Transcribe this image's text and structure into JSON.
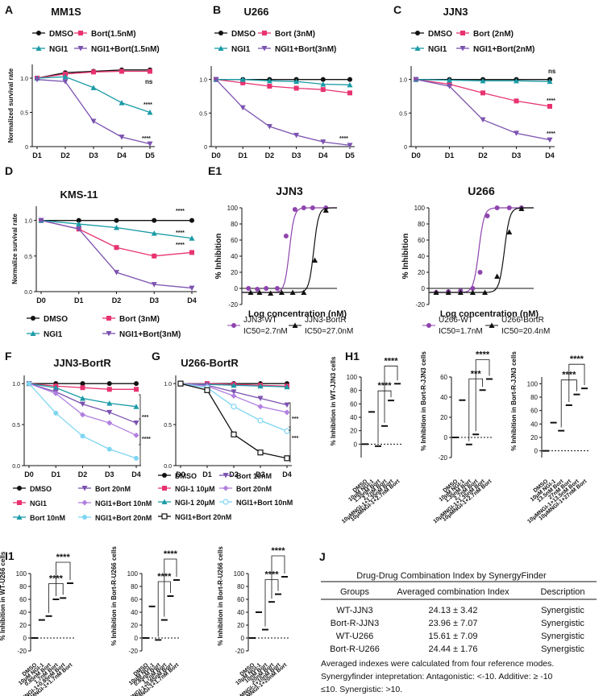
{
  "colors": {
    "dmso": "#111111",
    "ngi1": "#1a9ba6",
    "bort": "#e8336f",
    "combo": "#7b52b0",
    "bort10": "#7a9cc9",
    "ngi1b10": "#b07fe0",
    "ngi1b20": "#7fd6f2",
    "wt": "#8e44ad"
  },
  "chart_data": [
    {
      "panel": "A",
      "type": "line",
      "title": "MM1S",
      "ylabel": "Normalized survival rate",
      "x": [
        "D1",
        "D2",
        "D3",
        "D4",
        "D5"
      ],
      "ylim": [
        0,
        1.2
      ],
      "yticks": [
        "0",
        "0.5",
        "1.0"
      ],
      "legend": [
        "DMSO",
        "Bort(1.5nM)",
        "NGI1",
        "NGI1+Bort(1.5nM)"
      ],
      "series": [
        {
          "name": "DMSO",
          "values": [
            1.0,
            1.08,
            1.1,
            1.12,
            1.12
          ]
        },
        {
          "name": "Bort(1.5nM)",
          "values": [
            1.0,
            1.06,
            1.09,
            1.1,
            1.1
          ]
        },
        {
          "name": "NGI1",
          "values": [
            1.0,
            1.02,
            0.86,
            0.64,
            0.5
          ]
        },
        {
          "name": "NGI1+Bort(1.5nM)",
          "values": [
            0.98,
            0.95,
            0.37,
            0.14,
            0.04
          ]
        }
      ],
      "annotations": [
        "ns",
        "****",
        "****"
      ]
    },
    {
      "panel": "B",
      "type": "line",
      "title": "U266",
      "ylabel": "",
      "x": [
        "D0",
        "D1",
        "D2",
        "D3",
        "D4",
        "D5"
      ],
      "ylim": [
        0,
        1.2
      ],
      "yticks": [
        "0",
        "0.5",
        "1.0"
      ],
      "legend": [
        "DMSO",
        "Bort (3nM)",
        "NGI1",
        "NGI1+Bort(3nM)"
      ],
      "series": [
        {
          "name": "DMSO",
          "values": [
            1.0,
            1.0,
            1.0,
            1.0,
            1.0,
            1.0
          ]
        },
        {
          "name": "Bort (3nM)",
          "values": [
            1.0,
            0.95,
            0.9,
            0.87,
            0.85,
            0.8
          ]
        },
        {
          "name": "NGI1",
          "values": [
            1.0,
            1.0,
            0.98,
            0.97,
            0.93,
            0.92
          ]
        },
        {
          "name": "NGI1+Bort(3nM)",
          "values": [
            1.0,
            0.58,
            0.3,
            0.17,
            0.07,
            0.02
          ]
        }
      ],
      "annotations": [
        "****"
      ]
    },
    {
      "panel": "C",
      "type": "line",
      "title": "JJN3",
      "ylabel": "",
      "x": [
        "D0",
        "D1",
        "D2",
        "D3",
        "D4"
      ],
      "ylim": [
        0,
        1.2
      ],
      "yticks": [
        "0",
        "0.5",
        "1.0"
      ],
      "legend": [
        "DMSO",
        "Bort (2nM)",
        "NGI1",
        "NGI1+Bort(2nM)"
      ],
      "series": [
        {
          "name": "DMSO",
          "values": [
            1.0,
            1.0,
            1.0,
            1.0,
            1.0
          ]
        },
        {
          "name": "Bort (2nM)",
          "values": [
            1.0,
            0.93,
            0.8,
            0.68,
            0.6
          ]
        },
        {
          "name": "NGI1",
          "values": [
            1.0,
            0.99,
            0.98,
            0.98,
            0.97
          ]
        },
        {
          "name": "NGI1+Bort(2nM)",
          "values": [
            1.0,
            0.9,
            0.4,
            0.2,
            0.1
          ]
        }
      ],
      "annotations": [
        "ns",
        "****",
        "****"
      ]
    },
    {
      "panel": "D",
      "type": "line",
      "title": "KMS-11",
      "ylabel": "Normalize survival rate",
      "x": [
        "D0",
        "D1",
        "D2",
        "D3",
        "D4"
      ],
      "ylim": [
        0,
        1.2
      ],
      "yticks": [
        "0.0",
        "0.5",
        "1.0"
      ],
      "legend": [
        "DMSO",
        "Bort (3nM)",
        "NGI1",
        "NGI1+Bort(3nM)"
      ],
      "series": [
        {
          "name": "DMSO",
          "values": [
            1.0,
            1.0,
            1.0,
            1.0,
            1.0
          ]
        },
        {
          "name": "Bort (3nM)",
          "values": [
            1.0,
            0.88,
            0.62,
            0.5,
            0.55
          ]
        },
        {
          "name": "NGI1",
          "values": [
            1.0,
            0.95,
            0.9,
            0.82,
            0.75
          ]
        },
        {
          "name": "NGI1+Bort(3nM)",
          "values": [
            1.0,
            0.88,
            0.27,
            0.1,
            0.05
          ]
        }
      ],
      "annotations": [
        "****",
        "****",
        "****"
      ]
    },
    {
      "panel": "E1",
      "type": "scatter",
      "title": "JJN3",
      "xlabel": "Log concentration (nM)",
      "ylabel": "% Inhibition",
      "ylim": [
        -20,
        100
      ],
      "yticks": [
        "-20",
        "0",
        "20",
        "40",
        "60",
        "80",
        "100"
      ],
      "legend": [
        "JJN3-WT",
        "IC50=2.7nM",
        "JJN3-BortR",
        "IC50=27.0nM"
      ],
      "series": [
        {
          "name": "JJN3-WT",
          "x": [
            -1.5,
            -1.1,
            -0.7,
            -0.2,
            0.2,
            0.6,
            1.0,
            1.4,
            2.0
          ],
          "values": [
            0,
            -1,
            0,
            0,
            65,
            98,
            100,
            100,
            100
          ]
        },
        {
          "name": "JJN3-BortR",
          "x": [
            -1.4,
            -1.0,
            -0.5,
            0.0,
            0.5,
            1.0,
            1.5,
            2.0
          ],
          "values": [
            -5,
            -5,
            -6,
            -5,
            -5,
            -5,
            35,
            97
          ]
        }
      ]
    },
    {
      "panel": "E2",
      "type": "scatter",
      "title": "U266",
      "xlabel": "Log concentration (nM)",
      "ylabel": "% Inhibition",
      "ylim": [
        -20,
        100
      ],
      "yticks": [
        "-20",
        "0",
        "20",
        "40",
        "60",
        "80",
        "100"
      ],
      "legend": [
        "U266-WT",
        "IC50=1.7nM",
        "U266-BortR",
        "IC50=20.4nM"
      ],
      "series": [
        {
          "name": "U266-WT",
          "x": [
            -1.5,
            -1.0,
            -0.5,
            0.0,
            0.3,
            0.6,
            1.0,
            1.5,
            2.0
          ],
          "values": [
            -5,
            -4,
            -3,
            0,
            20,
            90,
            100,
            100,
            100
          ]
        },
        {
          "name": "U266-BortR",
          "x": [
            -1.5,
            -1.0,
            -0.5,
            0.0,
            0.5,
            1.0,
            1.5,
            2.0
          ],
          "values": [
            -5,
            -5,
            -5,
            -5,
            -5,
            15,
            70,
            99
          ]
        }
      ]
    },
    {
      "panel": "F",
      "type": "line",
      "title": "JJN3-BortR",
      "ylabel": "",
      "x": [
        "D0",
        "D1",
        "D2",
        "D3",
        "D4"
      ],
      "ylim": [
        0,
        1.1
      ],
      "yticks": [
        "0.0",
        "0.5",
        "1.0"
      ],
      "legend": [
        "DMSO",
        "Bort 20nM",
        "NGI1",
        "NGI1+Bort 10nM",
        "Bort 10nM",
        "NGI1+Bort 20nM"
      ],
      "series": [
        {
          "name": "DMSO",
          "values": [
            1.0,
            1.0,
            1.0,
            1.0,
            1.0
          ]
        },
        {
          "name": "NGI1",
          "values": [
            1.0,
            0.97,
            0.95,
            0.93,
            0.93
          ]
        },
        {
          "name": "Bort 10nM",
          "values": [
            1.0,
            0.95,
            0.82,
            0.76,
            0.72
          ]
        },
        {
          "name": "Bort 20nM",
          "values": [
            1.0,
            0.9,
            0.75,
            0.65,
            0.52
          ]
        },
        {
          "name": "NGI1+Bort 10nM",
          "values": [
            1.0,
            0.88,
            0.62,
            0.52,
            0.37
          ]
        },
        {
          "name": "NGI1+Bort 20nM",
          "values": [
            1.0,
            0.64,
            0.36,
            0.2,
            0.09
          ]
        }
      ],
      "annotations": [
        "***",
        "****"
      ]
    },
    {
      "panel": "G",
      "type": "line",
      "title": "U266-BortR",
      "ylabel": "",
      "x": [
        "D0",
        "D1",
        "D2",
        "D3",
        "D4"
      ],
      "ylim": [
        0,
        1.1
      ],
      "yticks": [
        "0.0",
        "0.5",
        "1.0"
      ],
      "legend": [
        "DMSO",
        "Bort 10nM",
        "NGI-1 10μM",
        "Bort 20nM",
        "NGI-1 20μM",
        "NGI1+Bort 10nM",
        "NGI1+Bort 20nM"
      ],
      "series": [
        {
          "name": "DMSO",
          "values": [
            1.0,
            1.0,
            1.0,
            1.0,
            1.0
          ]
        },
        {
          "name": "NGI-1 10μM",
          "values": [
            1.0,
            1.0,
            0.99,
            0.98,
            0.97
          ]
        },
        {
          "name": "NGI-1 20μM",
          "values": [
            1.0,
            0.99,
            0.98,
            0.97,
            0.96
          ]
        },
        {
          "name": "Bort 10nM",
          "values": [
            1.0,
            0.98,
            0.9,
            0.82,
            0.74
          ]
        },
        {
          "name": "Bort 20nM",
          "values": [
            1.0,
            0.97,
            0.85,
            0.72,
            0.65
          ]
        },
        {
          "name": "NGI1+Bort 10nM",
          "values": [
            1.0,
            0.95,
            0.72,
            0.55,
            0.42
          ]
        },
        {
          "name": "NGI1+Bort 20nM",
          "values": [
            1.0,
            0.92,
            0.38,
            0.16,
            0.09
          ]
        }
      ],
      "annotations": [
        "***",
        "***"
      ]
    },
    {
      "panel": "H1",
      "type": "scatter",
      "ylabel": "% Inhibition in WT-JJN3 cells",
      "ylim": [
        -20,
        100
      ],
      "yticks": [
        "0",
        "20",
        "40",
        "60",
        "80",
        "100"
      ],
      "categories": [
        "DMSO",
        "10μM NGI-1",
        "1.35nM Bort",
        "2.7nM Bort",
        "10μMNGI-1+1.35nM Bort",
        "10μMNGI-1+2.7nM Bort"
      ],
      "values": [
        0,
        48,
        -3,
        27,
        65,
        90
      ],
      "annotations": [
        "****",
        "****"
      ]
    },
    {
      "panel": "H2",
      "type": "scatter",
      "ylabel": "% Inhibition in Bort-R-JJN3 cells",
      "ylim": [
        -20,
        60
      ],
      "yticks": [
        "-20",
        "0",
        "20",
        "40",
        "60"
      ],
      "categories": [
        "DMSO",
        "10μM NGI-1",
        "1.35nM Bort",
        "2.7nM Bort",
        "10μMNGI-1+1.35nM Bort",
        "10μMNGI-1+2.7nM Bort"
      ],
      "values": [
        0,
        37,
        -7,
        3,
        47,
        58
      ],
      "annotations": [
        "***",
        "****"
      ]
    },
    {
      "panel": "H3",
      "type": "scatter",
      "ylabel": "% Inhibition in Bort-R-JJN3 cells",
      "ylim": [
        -10,
        110
      ],
      "yticks": [
        "0",
        "20",
        "40",
        "60",
        "80",
        "100"
      ],
      "categories": [
        "DMSO",
        "10μM NGI-1",
        "13.5nM Bort",
        "27nM Bort",
        "10μMNGI-1+13.5nM Bort",
        "10μMNGI-1+27nM Bort"
      ],
      "values": [
        0,
        42,
        30,
        68,
        84,
        93
      ],
      "annotations": [
        "****",
        "****"
      ]
    },
    {
      "panel": "I1",
      "type": "scatter",
      "ylabel": "% Inhibition in WT-U266 cells",
      "ylim": [
        -20,
        100
      ],
      "yticks": [
        "-20",
        "0",
        "20",
        "40",
        "60",
        "80",
        "100"
      ],
      "categories": [
        "DMSO",
        "10μM NGI-1",
        "0.85nM Bort",
        "1.7nM Bort",
        "10μMNGI-1+0.85nM Bort",
        "10μMNGI-1+1.7nM Bort"
      ],
      "values": [
        0,
        28,
        34,
        60,
        62,
        85
      ],
      "annotations": [
        "****",
        "****"
      ]
    },
    {
      "panel": "I2",
      "type": "scatter",
      "ylabel": "% Inhibition in Bort-R-U266 cells",
      "ylim": [
        -20,
        100
      ],
      "yticks": [
        "-20",
        "0",
        "20",
        "40",
        "60",
        "80",
        "100"
      ],
      "categories": [
        "DMSO",
        "10μM NGI-1",
        "0.85nM Bort",
        "1.7nM Bort",
        "10μMNGI-1+0.85nM Bort",
        "10μMNGI-1+1.7nM Bort"
      ],
      "values": [
        0,
        49,
        -3,
        28,
        65,
        90
      ],
      "annotations": [
        "****",
        "****"
      ]
    },
    {
      "panel": "I3",
      "type": "scatter",
      "ylabel": "% Inhibition in Bort-R-U266 cells",
      "ylim": [
        -20,
        100
      ],
      "yticks": [
        "-20",
        "0",
        "20",
        "40",
        "60",
        "80",
        "100"
      ],
      "categories": [
        "DMSO",
        "10μM NGI-1",
        "10nM Bort",
        "20nM Bort",
        "10μMNGI-1+10nM Bort",
        "10μMNGI-1+20nM Bort"
      ],
      "values": [
        0,
        40,
        13,
        56,
        68,
        95
      ],
      "annotations": [
        "****",
        "****"
      ]
    },
    {
      "panel": "J",
      "type": "table",
      "title": "Drug-Drug Combination Index by SynergyFinder",
      "headers": [
        "Groups",
        "Averaged combination Index",
        "Description"
      ],
      "rows": [
        [
          "WT-JJN3",
          "24.13 ± 3.42",
          "Synergistic"
        ],
        [
          "Bort-R-JJN3",
          "23.96 ± 7.07",
          "Synergistic"
        ],
        [
          "WT-U266",
          "15.61 ± 7.09",
          "Synergistic"
        ],
        [
          "Bort-R-U266",
          "24.44 ± 1.76",
          "Synergistic"
        ]
      ],
      "notes": [
        "Averaged indexes were calculated from four reference modes.",
        "Synergyfinder intepretation: Antagonistic: <-10. Additive: ≥ -10",
        "≤10. Synergistic: >10."
      ]
    }
  ]
}
